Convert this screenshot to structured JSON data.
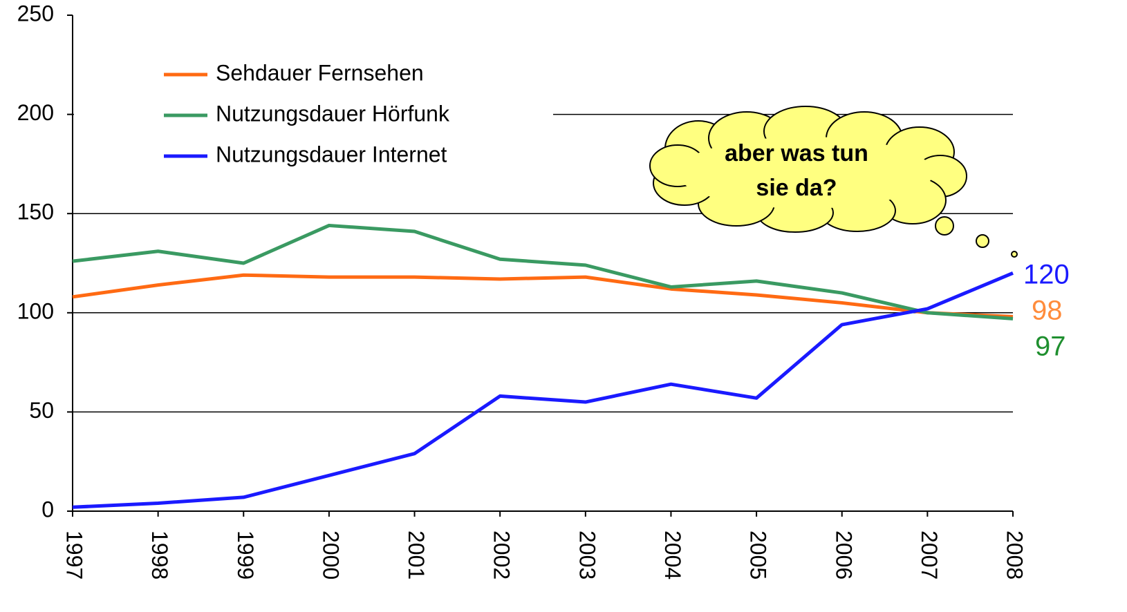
{
  "chart_data": {
    "type": "line",
    "categories": [
      "1997",
      "1998",
      "1999",
      "2000",
      "2001",
      "2002",
      "2003",
      "2004",
      "2005",
      "2006",
      "2007",
      "2008"
    ],
    "series": [
      {
        "name": "Sehdauer Fernsehen",
        "color": "#ff6a13",
        "values": [
          108,
          114,
          119,
          118,
          118,
          117,
          118,
          112,
          109,
          105,
          100,
          98
        ]
      },
      {
        "name": "Nutzungsdauer Hörfunk",
        "color": "#3a9a62",
        "values": [
          126,
          131,
          125,
          144,
          141,
          127,
          124,
          113,
          116,
          110,
          100,
          97
        ]
      },
      {
        "name": "Nutzungsdauer Internet",
        "color": "#1a1aff",
        "values": [
          2,
          4,
          7,
          18,
          29,
          58,
          55,
          64,
          57,
          94,
          102,
          120
        ]
      }
    ],
    "end_label_colors": [
      "#ff8c3c",
      "#1f8f2f",
      "#1a1aff"
    ],
    "ylim": [
      0,
      250
    ],
    "yticks": [
      0,
      50,
      100,
      150,
      200,
      250
    ],
    "grid": true,
    "annotation": [
      "aber was tun",
      "sie da?"
    ]
  }
}
